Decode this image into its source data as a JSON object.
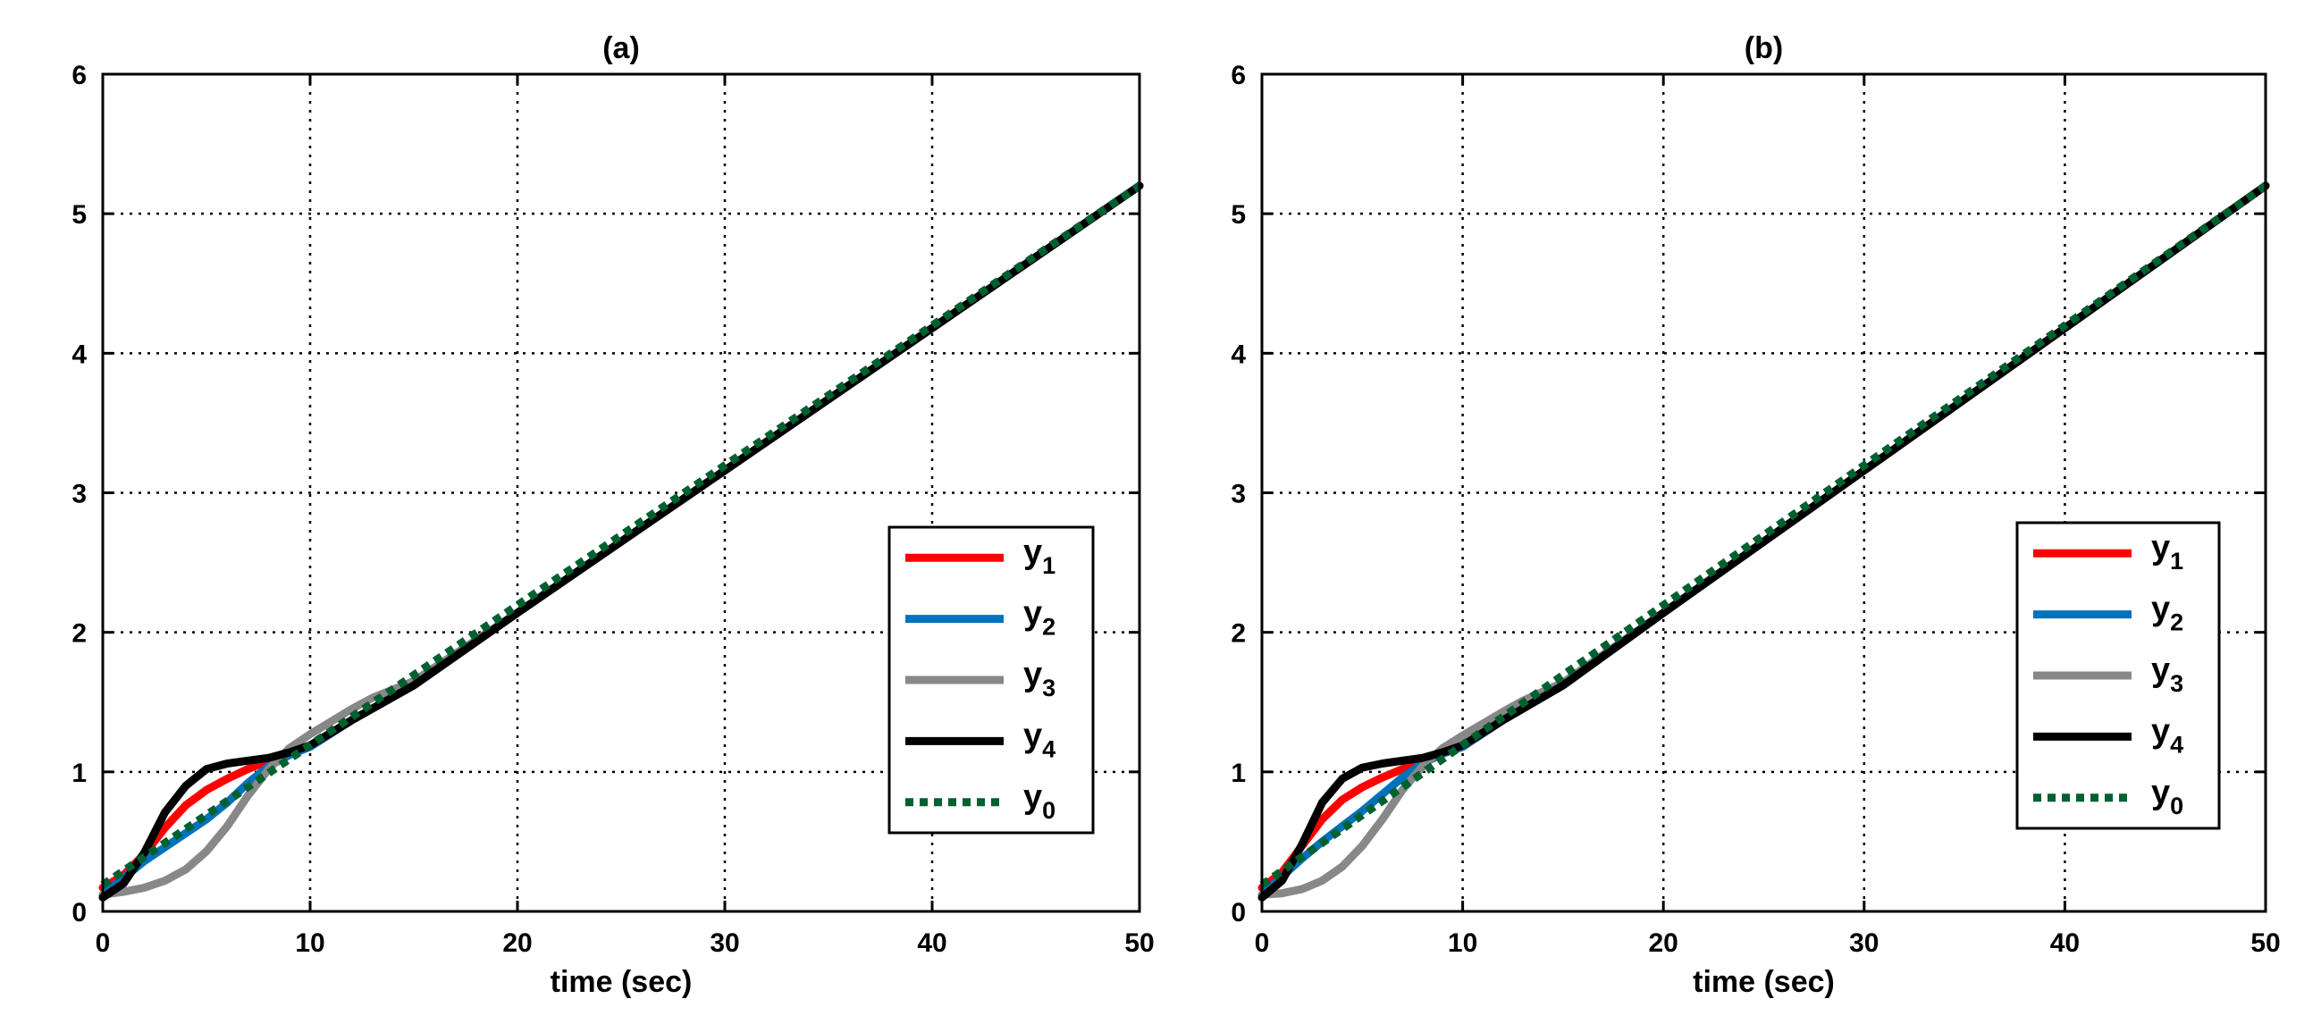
{
  "chart_data": [
    {
      "type": "line",
      "title": "(a)",
      "xlabel": "time (sec)",
      "ylabel": "",
      "xlim": [
        0,
        50
      ],
      "ylim": [
        0,
        6
      ],
      "xticks": [
        0,
        10,
        20,
        30,
        40,
        50
      ],
      "yticks": [
        0,
        1,
        2,
        3,
        4,
        5,
        6
      ],
      "grid": true,
      "legend": "right",
      "series": [
        {
          "name": "y",
          "sub": "1",
          "color": "#ff0000",
          "style": "solid",
          "x": [
            0,
            1,
            2,
            3,
            4,
            5,
            6,
            7,
            8,
            9,
            10,
            12,
            15,
            20,
            30,
            40,
            50
          ],
          "y": [
            0.17,
            0.26,
            0.41,
            0.6,
            0.76,
            0.87,
            0.95,
            1.02,
            1.08,
            1.13,
            1.18,
            1.37,
            1.62,
            2.14,
            3.16,
            4.18,
            5.2
          ]
        },
        {
          "name": "y",
          "sub": "2",
          "color": "#0072bd",
          "style": "solid",
          "x": [
            0,
            1,
            2,
            3,
            4,
            5,
            6,
            7,
            8,
            9,
            10,
            12,
            15,
            20,
            30,
            40,
            50
          ],
          "y": [
            0.12,
            0.24,
            0.36,
            0.46,
            0.56,
            0.66,
            0.78,
            0.92,
            1.04,
            1.12,
            1.18,
            1.37,
            1.62,
            2.14,
            3.16,
            4.18,
            5.2
          ]
        },
        {
          "name": "y",
          "sub": "3",
          "color": "#888888",
          "style": "solid",
          "x": [
            0,
            1,
            2,
            3,
            4,
            5,
            6,
            7,
            8,
            9,
            10,
            12,
            13,
            15,
            20,
            30,
            40,
            50
          ],
          "y": [
            0.12,
            0.14,
            0.17,
            0.22,
            0.3,
            0.43,
            0.61,
            0.83,
            1.02,
            1.17,
            1.27,
            1.45,
            1.53,
            1.65,
            2.14,
            3.16,
            4.18,
            5.2
          ]
        },
        {
          "name": "y",
          "sub": "4",
          "color": "#000000",
          "style": "solid",
          "x": [
            0,
            1,
            2,
            3,
            4,
            5,
            6,
            7,
            8,
            9,
            10,
            12,
            15,
            20,
            30,
            40,
            50
          ],
          "y": [
            0.1,
            0.2,
            0.42,
            0.71,
            0.9,
            1.02,
            1.06,
            1.08,
            1.1,
            1.14,
            1.19,
            1.37,
            1.62,
            2.14,
            3.16,
            4.18,
            5.2
          ]
        },
        {
          "name": "y",
          "sub": "0",
          "color": "#006030",
          "style": "dotted",
          "x": [
            0,
            50
          ],
          "y": [
            0.19,
            5.2
          ]
        }
      ]
    },
    {
      "type": "line",
      "title": "(b)",
      "xlabel": "time (sec)",
      "ylabel": "",
      "xlim": [
        0,
        50
      ],
      "ylim": [
        0,
        6
      ],
      "xticks": [
        0,
        10,
        20,
        30,
        40,
        50
      ],
      "yticks": [
        0,
        1,
        2,
        3,
        4,
        5,
        6
      ],
      "grid": true,
      "legend": "right",
      "series": [
        {
          "name": "y",
          "sub": "1",
          "color": "#ff0000",
          "style": "solid",
          "x": [
            0,
            1,
            2,
            3,
            4,
            5,
            6,
            7,
            8,
            9,
            10,
            12,
            15,
            20,
            30,
            40,
            50
          ],
          "y": [
            0.17,
            0.28,
            0.47,
            0.66,
            0.8,
            0.89,
            0.96,
            1.02,
            1.08,
            1.13,
            1.18,
            1.37,
            1.62,
            2.14,
            3.16,
            4.18,
            5.2
          ]
        },
        {
          "name": "y",
          "sub": "2",
          "color": "#0072bd",
          "style": "solid",
          "x": [
            0,
            1,
            2,
            3,
            4,
            5,
            6,
            7,
            8,
            9,
            10,
            12,
            15,
            20,
            30,
            40,
            50
          ],
          "y": [
            0.12,
            0.25,
            0.38,
            0.5,
            0.61,
            0.72,
            0.84,
            0.96,
            1.06,
            1.13,
            1.18,
            1.37,
            1.62,
            2.14,
            3.16,
            4.18,
            5.2
          ]
        },
        {
          "name": "y",
          "sub": "3",
          "color": "#888888",
          "style": "solid",
          "x": [
            0,
            1,
            2,
            3,
            4,
            5,
            6,
            7,
            8,
            9,
            10,
            12,
            13,
            15,
            20,
            30,
            40,
            50
          ],
          "y": [
            0.12,
            0.13,
            0.16,
            0.22,
            0.32,
            0.47,
            0.66,
            0.87,
            1.04,
            1.17,
            1.26,
            1.43,
            1.51,
            1.64,
            2.14,
            3.16,
            4.18,
            5.2
          ]
        },
        {
          "name": "y",
          "sub": "4",
          "color": "#000000",
          "style": "solid",
          "x": [
            0,
            1,
            2,
            3,
            4,
            5,
            6,
            7,
            8,
            9,
            10,
            12,
            15,
            20,
            30,
            40,
            50
          ],
          "y": [
            0.1,
            0.22,
            0.48,
            0.78,
            0.95,
            1.03,
            1.06,
            1.08,
            1.1,
            1.14,
            1.19,
            1.37,
            1.62,
            2.14,
            3.16,
            4.18,
            5.2
          ]
        },
        {
          "name": "y",
          "sub": "0",
          "color": "#006030",
          "style": "dotted",
          "x": [
            0,
            50
          ],
          "y": [
            0.19,
            5.2
          ]
        }
      ]
    }
  ]
}
